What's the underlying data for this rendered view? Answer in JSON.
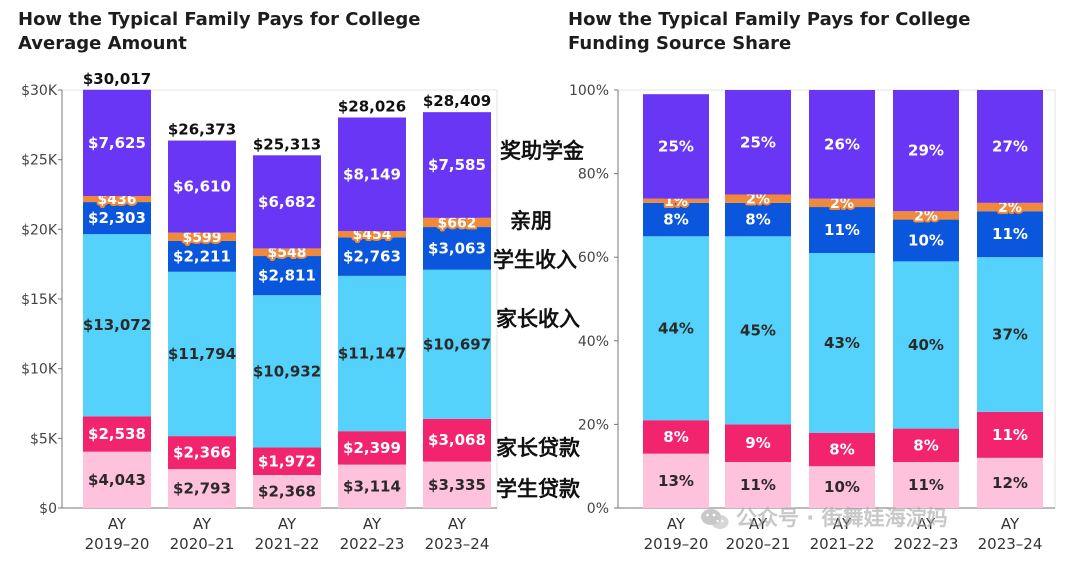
{
  "charts": {
    "left_title": "How the Typical Family Pays for College\nAverage Amount",
    "right_title": "How the Typical Family Pays for College\nFunding Source Share"
  },
  "legend_cn": {
    "scholarships": "奖助学金",
    "friends": "亲朋",
    "student_income": "学生收入",
    "parent_income": "家长收入",
    "parent_loans": "家长贷款",
    "student_loans": "学生贷款"
  },
  "watermark": "公众号 · 街舞娃海淀妈",
  "colors": {
    "student_loans": "#ffc2dc",
    "parent_loans": "#f2246e",
    "parent_income": "#55d2fb",
    "student_income": "#0a56dc",
    "friends": "#f08a3a",
    "scholarships": "#6a36f5"
  },
  "chart_data": [
    {
      "type": "bar",
      "stacked": true,
      "title": "How the Typical Family Pays for College Average Amount",
      "categories": [
        "AY\n2019–20",
        "AY\n2020–21",
        "AY\n2021–22",
        "AY\n2022–23",
        "AY\n2023–24"
      ],
      "ylim": [
        0,
        30000
      ],
      "yticks": [
        "$0",
        "$5K",
        "$10K",
        "$15K",
        "$20K",
        "$25K",
        "$30K"
      ],
      "ytick_values": [
        0,
        5000,
        10000,
        15000,
        20000,
        25000,
        30000
      ],
      "totals": [
        30017,
        26373,
        25313,
        28026,
        28409
      ],
      "total_labels": [
        "$30,017",
        "$26,373",
        "$25,313",
        "$28,026",
        "$28,409"
      ],
      "series": [
        {
          "name": "student_loans",
          "values": [
            4043,
            2793,
            2368,
            3114,
            3335
          ],
          "labels": [
            "$4,043",
            "$2,793",
            "$2,368",
            "$3,114",
            "$3,335"
          ]
        },
        {
          "name": "parent_loans",
          "values": [
            2538,
            2366,
            1972,
            2399,
            3068
          ],
          "labels": [
            "$2,538",
            "$2,366",
            "$1,972",
            "$2,399",
            "$3,068"
          ]
        },
        {
          "name": "parent_income",
          "values": [
            13072,
            11794,
            10932,
            11147,
            10697
          ],
          "labels": [
            "$13,072",
            "$11,794",
            "$10,932",
            "$11,147",
            "$10,697"
          ]
        },
        {
          "name": "student_income",
          "values": [
            2303,
            2211,
            2811,
            2763,
            3063
          ],
          "labels": [
            "$2,303",
            "$2,211",
            "$2,811",
            "$2,763",
            "$3,063"
          ]
        },
        {
          "name": "friends",
          "values": [
            436,
            599,
            548,
            454,
            662
          ],
          "labels": [
            "$436",
            "$599",
            "$548",
            "$454",
            "$662"
          ]
        },
        {
          "name": "scholarships",
          "values": [
            7625,
            6610,
            6682,
            8149,
            7585
          ],
          "labels": [
            "$7,625",
            "$6,610",
            "$6,682",
            "$8,149",
            "$7,585"
          ]
        }
      ]
    },
    {
      "type": "bar",
      "stacked": true,
      "title": "How the Typical Family Pays for College Funding Source Share",
      "categories": [
        "AY\n2019–20",
        "AY\n2020–21",
        "AY\n2021–22",
        "AY\n2022–23",
        "AY\n2023–24"
      ],
      "ylim": [
        0,
        100
      ],
      "yticks": [
        "0%",
        "20%",
        "40%",
        "60%",
        "80%",
        "100%"
      ],
      "ytick_values": [
        0,
        20,
        40,
        60,
        80,
        100
      ],
      "series": [
        {
          "name": "student_loans",
          "values": [
            13,
            11,
            10,
            11,
            12
          ],
          "labels": [
            "13%",
            "11%",
            "10%",
            "11%",
            "12%"
          ]
        },
        {
          "name": "parent_loans",
          "values": [
            8,
            9,
            8,
            8,
            11
          ],
          "labels": [
            "8%",
            "9%",
            "8%",
            "8%",
            "11%"
          ]
        },
        {
          "name": "parent_income",
          "values": [
            44,
            45,
            43,
            40,
            37
          ],
          "labels": [
            "44%",
            "45%",
            "43%",
            "40%",
            "37%"
          ]
        },
        {
          "name": "student_income",
          "values": [
            8,
            8,
            11,
            10,
            11
          ],
          "labels": [
            "8%",
            "8%",
            "11%",
            "10%",
            "11%"
          ]
        },
        {
          "name": "friends",
          "values": [
            1,
            2,
            2,
            2,
            2
          ],
          "labels": [
            "1%",
            "2%",
            "2%",
            "2%",
            "2%"
          ]
        },
        {
          "name": "scholarships",
          "values": [
            25,
            25,
            26,
            29,
            27
          ],
          "labels": [
            "25%",
            "25%",
            "26%",
            "29%",
            "27%"
          ]
        }
      ]
    }
  ]
}
